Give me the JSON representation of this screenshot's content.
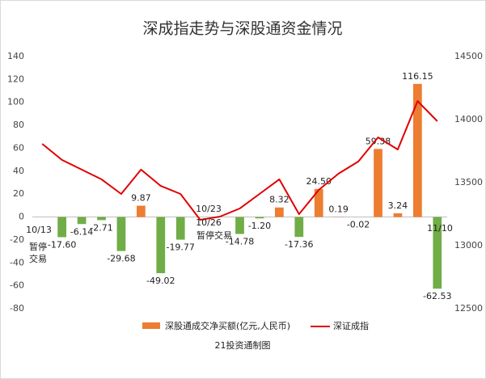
{
  "chart_data": {
    "type": "bar-line",
    "title": "深成指走势与深股通资金情况",
    "source": "21投资通制图",
    "categories": [
      null,
      null,
      null,
      null,
      null,
      null,
      null,
      null,
      null,
      null,
      null,
      null,
      null,
      null,
      null,
      null,
      null,
      null,
      null,
      null,
      null
    ],
    "series": [
      {
        "name": "深股通成交净买额(亿元,人民币)",
        "type": "bar",
        "color": "#ed7d31",
        "negative_color": "#70ad47",
        "values": [
          null,
          -17.6,
          -6.14,
          -2.71,
          -29.68,
          9.87,
          -49.02,
          -19.77,
          null,
          null,
          -14.78,
          -1.2,
          8.32,
          -17.36,
          24.5,
          0.19,
          -0.02,
          59.38,
          3.24,
          116.15,
          -62.53
        ],
        "value_labels": [
          null,
          "-17.60",
          "-6.14",
          "-2.71",
          "-29.68",
          "9.87",
          "-49.02",
          "-19.77",
          null,
          null,
          "-14.78",
          "-1.20",
          "8.32",
          "-17.36",
          "24.50",
          "0.19",
          "-0.02",
          "59.38",
          "3.24",
          "116.15",
          "-62.53"
        ]
      },
      {
        "name": "深证成指",
        "type": "line",
        "axis": "y2",
        "color": "#e00000",
        "values": [
          13808,
          13680,
          13603,
          13526,
          13410,
          13603,
          13474,
          13410,
          13205,
          13231,
          13295,
          13410,
          13526,
          13250,
          13442,
          13571,
          13667,
          13859,
          13763,
          14147,
          13987
        ]
      }
    ],
    "annotations": [
      "10/13",
      "暂停",
      "交易",
      "10/23",
      "10/26",
      "暂停交易",
      "11/10"
    ],
    "ylim": [
      -80,
      140
    ],
    "yticks": [
      -80,
      -60,
      -40,
      -20,
      0,
      20,
      40,
      60,
      80,
      100,
      120,
      140
    ],
    "y2lim": [
      12500,
      14500
    ],
    "y2ticks": [
      12500,
      13000,
      13500,
      14000,
      14500
    ],
    "grid": false
  }
}
